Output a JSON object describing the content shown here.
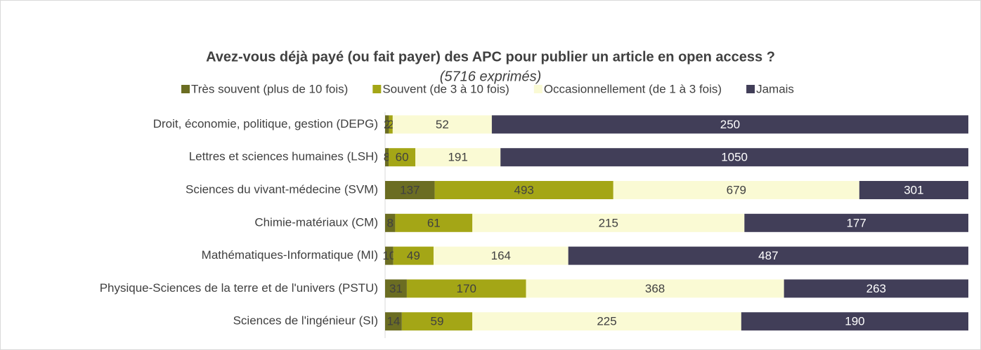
{
  "chart_data": {
    "type": "bar",
    "orientation": "horizontal",
    "stacked": "percent",
    "title": "Avez-vous déjà payé (ou fait payer) des APC pour publier un article en open access ?",
    "subtitle": "(5716 exprimés)",
    "categories": [
      "Droit, économie, politique, gestion (DEPG)",
      "Lettres et sciences humaines (LSH)",
      "Sciences du vivant-médecine (SVM)",
      "Chimie-matériaux (CM)",
      "Mathématiques-Informatique (MI)",
      "Physique-Sciences de la terre et de l'univers (PSTU)",
      "Sciences de l'ingénieur (SI)"
    ],
    "series": [
      {
        "name": "Très souvent (plus de 10 fois)",
        "color": "#6b6d22",
        "values": [
          2,
          8,
          137,
          8,
          10,
          31,
          14
        ]
      },
      {
        "name": "Souvent (de 3 à 10 fois)",
        "color": "#a4a616",
        "values": [
          2,
          60,
          493,
          61,
          49,
          170,
          59
        ]
      },
      {
        "name": "Occasionnellement (de 1 à 3 fois)",
        "color": "#fafad4",
        "values": [
          52,
          191,
          679,
          215,
          164,
          368,
          225
        ]
      },
      {
        "name": "Jamais",
        "color": "#413e58",
        "values": [
          250,
          1050,
          301,
          177,
          487,
          263,
          190
        ]
      }
    ],
    "legend": "top"
  }
}
